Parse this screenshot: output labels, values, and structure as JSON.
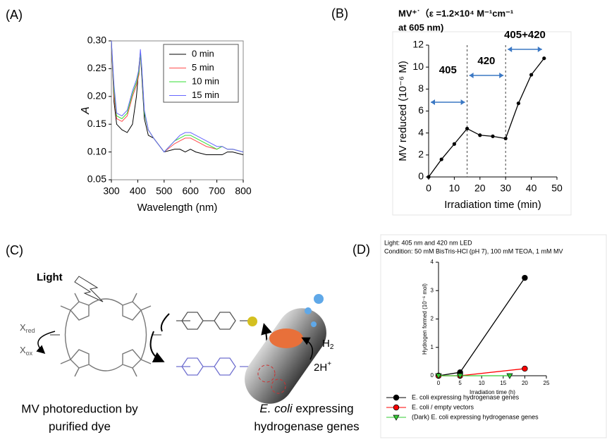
{
  "chart_data": [
    {
      "type": "line",
      "label": "(A)",
      "xlabel": "Wavelength (nm)",
      "ylabel": "A",
      "xlim": [
        300,
        800
      ],
      "ylim": [
        0.05,
        0.3
      ],
      "xticks": [
        300,
        400,
        500,
        600,
        700,
        800
      ],
      "yticks": [
        0.05,
        {
          "value": 0.1,
          "label": "0.10"
        },
        0.15,
        {
          "value": 0.2,
          "label": "0.20"
        },
        0.25,
        {
          "value": 0.3,
          "label": "0.30"
        }
      ],
      "frame": true,
      "legend": "upper right",
      "x": [
        300,
        310,
        320,
        340,
        360,
        380,
        395,
        405,
        410,
        415,
        425,
        440,
        460,
        500,
        540,
        560,
        580,
        600,
        620,
        660,
        700,
        720,
        740,
        760,
        800
      ],
      "series": [
        {
          "name": "0 min",
          "color": "#000000",
          "values": [
            0.3,
            0.19,
            0.15,
            0.14,
            0.135,
            0.15,
            0.2,
            0.255,
            0.28,
            0.24,
            0.16,
            0.13,
            0.125,
            0.1,
            0.105,
            0.105,
            0.1,
            0.105,
            0.1,
            0.095,
            0.095,
            0.095,
            0.1,
            0.1,
            0.095
          ]
        },
        {
          "name": "5 min",
          "color": "#ff4d4d",
          "values": [
            0.3,
            0.2,
            0.16,
            0.155,
            0.165,
            0.2,
            0.22,
            0.24,
            0.28,
            0.25,
            0.17,
            0.14,
            0.125,
            0.1,
            0.115,
            0.12,
            0.125,
            0.125,
            0.12,
            0.11,
            0.105,
            0.11,
            0.105,
            0.105,
            0.1
          ]
        },
        {
          "name": "10 min",
          "color": "#33dd33",
          "values": [
            0.3,
            0.21,
            0.165,
            0.16,
            0.17,
            0.205,
            0.225,
            0.245,
            0.28,
            0.25,
            0.17,
            0.14,
            0.125,
            0.1,
            0.12,
            0.125,
            0.13,
            0.13,
            0.125,
            0.115,
            0.105,
            0.11,
            0.105,
            0.105,
            0.1
          ]
        },
        {
          "name": "15 min",
          "color": "#6666ff",
          "values": [
            0.3,
            0.22,
            0.17,
            0.165,
            0.175,
            0.21,
            0.23,
            0.25,
            0.285,
            0.255,
            0.175,
            0.14,
            0.125,
            0.1,
            0.12,
            0.13,
            0.135,
            0.135,
            0.13,
            0.12,
            0.11,
            0.11,
            0.105,
            0.105,
            0.1
          ]
        }
      ]
    },
    {
      "type": "line",
      "label": "(B)",
      "title": "MV⁺˙（ε =1.2×10⁴ M⁻¹cm⁻¹",
      "subtitle": "at 605 nm)",
      "xlabel": "Irradiation time (min)",
      "ylabel": "MV reduced (10⁻⁶ M)",
      "xlim": [
        0,
        50
      ],
      "ylim": [
        0,
        12
      ],
      "xticks": [
        0,
        10,
        20,
        30,
        40,
        50
      ],
      "yticks": [
        0,
        2,
        4,
        6,
        8,
        10,
        12
      ],
      "frame": false,
      "markers": true,
      "x": [
        0,
        5,
        10,
        15,
        20,
        25,
        30,
        35,
        40,
        45
      ],
      "series": [
        {
          "color": "#000000",
          "values": [
            0,
            1.6,
            3.0,
            4.4,
            3.8,
            3.7,
            3.5,
            6.7,
            9.3,
            10.8
          ]
        }
      ],
      "vlines": [
        15,
        30
      ],
      "annotations": [
        {
          "text": "405",
          "span": [
            0,
            15
          ]
        },
        {
          "text": "420",
          "span": [
            15,
            30
          ]
        },
        {
          "text": "405+420",
          "span": [
            30,
            45
          ]
        }
      ]
    },
    {
      "type": "line",
      "label": "(D)",
      "title": "Light: 405 nm and 420 nm LED",
      "subtitle": "Condition: 50 mM BisTris-HCl (pH 7), 100 mM TEOA, 1 mM MV",
      "xlabel": "Irradiation time (h)",
      "ylabel": "Hydrogen formed (10⁻⁶ mol)",
      "xlim": [
        0,
        25
      ],
      "ylim": [
        0,
        4
      ],
      "xticks": [
        0,
        5,
        10,
        15,
        20,
        25
      ],
      "yticks": [
        0,
        1,
        2,
        3,
        4
      ],
      "frame": false,
      "legend": "bottom",
      "series": [
        {
          "name": "E. coli expressing hydrogenase genes",
          "color": "#000000",
          "marker": "circle",
          "x": [
            0,
            5,
            20
          ],
          "values": [
            0,
            0.12,
            3.45
          ]
        },
        {
          "name": "E. coli / empty vectors",
          "color": "#ff0000",
          "marker": "circle",
          "x": [
            0,
            5,
            20
          ],
          "values": [
            0,
            0,
            0.25
          ]
        },
        {
          "name": "(Dark) E. coli expressing hydrogenase genes",
          "color": "#33cc33",
          "marker": "triangle",
          "x": [
            0,
            5,
            16.5
          ],
          "values": [
            0,
            0,
            0
          ]
        }
      ]
    }
  ],
  "diagram": {
    "label": "(C)",
    "light": "Light",
    "x_red": [
      "X",
      "red"
    ],
    "x_ox": [
      "X",
      "ox"
    ],
    "h2": [
      "H",
      "2"
    ],
    "protons": [
      "2H",
      "+"
    ],
    "caption_left": [
      "MV photoreduction by",
      "purified dye"
    ],
    "caption_right": [
      "E. coli",
      " expressing",
      "hydrogenase genes"
    ]
  }
}
